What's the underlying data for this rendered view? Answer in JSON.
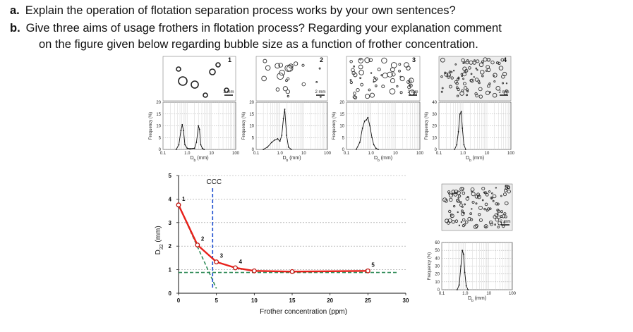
{
  "questions": [
    {
      "letter": "a.",
      "text": "Explain the operation of flotation separation process works by your own sentences?"
    },
    {
      "letter": "b.",
      "text": "Give three aims of usage frothers in flotation process? Regarding your explanation comment"
    }
  ],
  "question_b_line2": "on the figure given below regarding bubble size as a function of frother concentration.",
  "photo_panels": [
    {
      "num": "1",
      "scale": "2 mm"
    },
    {
      "num": "2",
      "scale": "2 mm"
    },
    {
      "num": "3",
      "scale": "2 mm"
    },
    {
      "num": "4",
      "scale": "2 mm"
    },
    {
      "num": "5",
      "scale": "2 mm"
    }
  ],
  "chart_data": [
    {
      "type": "line",
      "panel": "1",
      "xscale": "log",
      "xlim": [
        0.1,
        100
      ],
      "xticks": [
        "0.1",
        "1.0",
        "10",
        "100"
      ],
      "xlabel": "D_b (mm)",
      "ylabel": "Frequency (%)",
      "ylim": [
        0,
        20
      ],
      "yticks": [
        "0",
        "5",
        "10",
        "15",
        "20"
      ],
      "series": [
        {
          "x": [
            0.35,
            0.45,
            0.55,
            0.62,
            0.7,
            0.8,
            1.0,
            1.3,
            2.0,
            2.4,
            2.9,
            3.2,
            3.6,
            4.2,
            5.0
          ],
          "y": [
            0,
            2,
            8,
            10.5,
            8,
            2,
            0.5,
            0.3,
            0.5,
            3,
            10,
            8.5,
            2,
            0.5,
            0
          ]
        }
      ]
    },
    {
      "type": "line",
      "panel": "2",
      "xscale": "log",
      "xlim": [
        0.1,
        100
      ],
      "xticks": [
        "0.1",
        "1.0",
        "10",
        "100"
      ],
      "xlabel": "D_b (mm)",
      "ylabel": "Frequency (%)",
      "ylim": [
        0,
        20
      ],
      "yticks": [
        "0",
        "5",
        "10",
        "15",
        "20"
      ],
      "series": [
        {
          "x": [
            0.2,
            0.3,
            0.45,
            0.6,
            0.8,
            1.0,
            1.2,
            1.4,
            1.6,
            1.9,
            2.3,
            3.0
          ],
          "y": [
            0,
            1,
            3,
            4,
            4.5,
            3.5,
            6,
            13,
            17,
            6,
            1,
            0
          ]
        }
      ]
    },
    {
      "type": "line",
      "panel": "3",
      "xscale": "log",
      "xlim": [
        0.1,
        100
      ],
      "xticks": [
        "0.1",
        "1.0",
        "10",
        "100"
      ],
      "xlabel": "D_b (mm)",
      "ylabel": "Frequency (%)",
      "ylim": [
        0,
        20
      ],
      "yticks": [
        "0",
        "5",
        "10",
        "15",
        "20"
      ],
      "series": [
        {
          "x": [
            0.25,
            0.35,
            0.45,
            0.55,
            0.65,
            0.75,
            0.9,
            1.1,
            1.3,
            1.6,
            2.0
          ],
          "y": [
            0,
            3,
            9,
            12,
            12.5,
            13.5,
            10,
            5,
            2,
            0.5,
            0
          ]
        }
      ]
    },
    {
      "type": "line",
      "panel": "4",
      "xscale": "log",
      "xlim": [
        0.1,
        100
      ],
      "xticks": [
        "0.1",
        "1.0",
        "10",
        "100"
      ],
      "xlabel": "D_b (mm)",
      "ylabel": "Frequency (%)",
      "ylim": [
        0,
        40
      ],
      "yticks": [
        "0",
        "10",
        "20",
        "30",
        "40"
      ],
      "series": [
        {
          "x": [
            0.45,
            0.55,
            0.65,
            0.75,
            0.85,
            0.95,
            1.1,
            1.3
          ],
          "y": [
            0,
            4,
            15,
            30,
            32,
            18,
            4,
            0
          ]
        }
      ]
    },
    {
      "type": "line",
      "panel": "5",
      "xscale": "log",
      "xlim": [
        0.1,
        100
      ],
      "xticks": [
        "0.1",
        "1.0",
        "10",
        "100"
      ],
      "xlabel": "D_b (mm)",
      "ylabel": "Frequency (%)",
      "ylim": [
        0,
        60
      ],
      "yticks": [
        "0",
        "10",
        "20",
        "30",
        "40",
        "50",
        "60"
      ],
      "series": [
        {
          "x": [
            0.45,
            0.55,
            0.65,
            0.75,
            0.85,
            0.95,
            1.1,
            1.3
          ],
          "y": [
            0,
            6,
            30,
            50,
            45,
            22,
            5,
            0
          ]
        }
      ]
    },
    {
      "type": "line",
      "panel": "main",
      "xlabel": "Frother concentration (ppm)",
      "ylabel": "D32 (mm)",
      "xlim": [
        0,
        30
      ],
      "ylim": [
        0,
        5
      ],
      "xticks": [
        0,
        5,
        10,
        15,
        20,
        25,
        30
      ],
      "yticks": [
        0,
        1,
        2,
        3,
        4,
        5
      ],
      "annotation": "CCC",
      "ccc_x": 4.5,
      "series": [
        {
          "x": [
            0,
            2.5,
            5,
            7.5,
            10,
            15,
            25
          ],
          "y": [
            3.75,
            2.05,
            1.33,
            1.08,
            0.95,
            0.92,
            0.95
          ],
          "labels": [
            "1",
            "2",
            "3",
            "4",
            "",
            "",
            "5"
          ]
        }
      ],
      "trend_lines": [
        {
          "style": "dashed",
          "color": "#2e8b57",
          "x": [
            0,
            5
          ],
          "y": [
            3.75,
            0.2
          ]
        },
        {
          "style": "dashed",
          "color": "#2e8b57",
          "x": [
            0,
            29
          ],
          "y": [
            0.88,
            0.88
          ]
        }
      ],
      "grid": true
    }
  ],
  "colors": {
    "curve": "#e8201a",
    "marker_edge": "#c0140f",
    "ccc_line": "#1f4fd0",
    "trend": "#2e8b57"
  }
}
